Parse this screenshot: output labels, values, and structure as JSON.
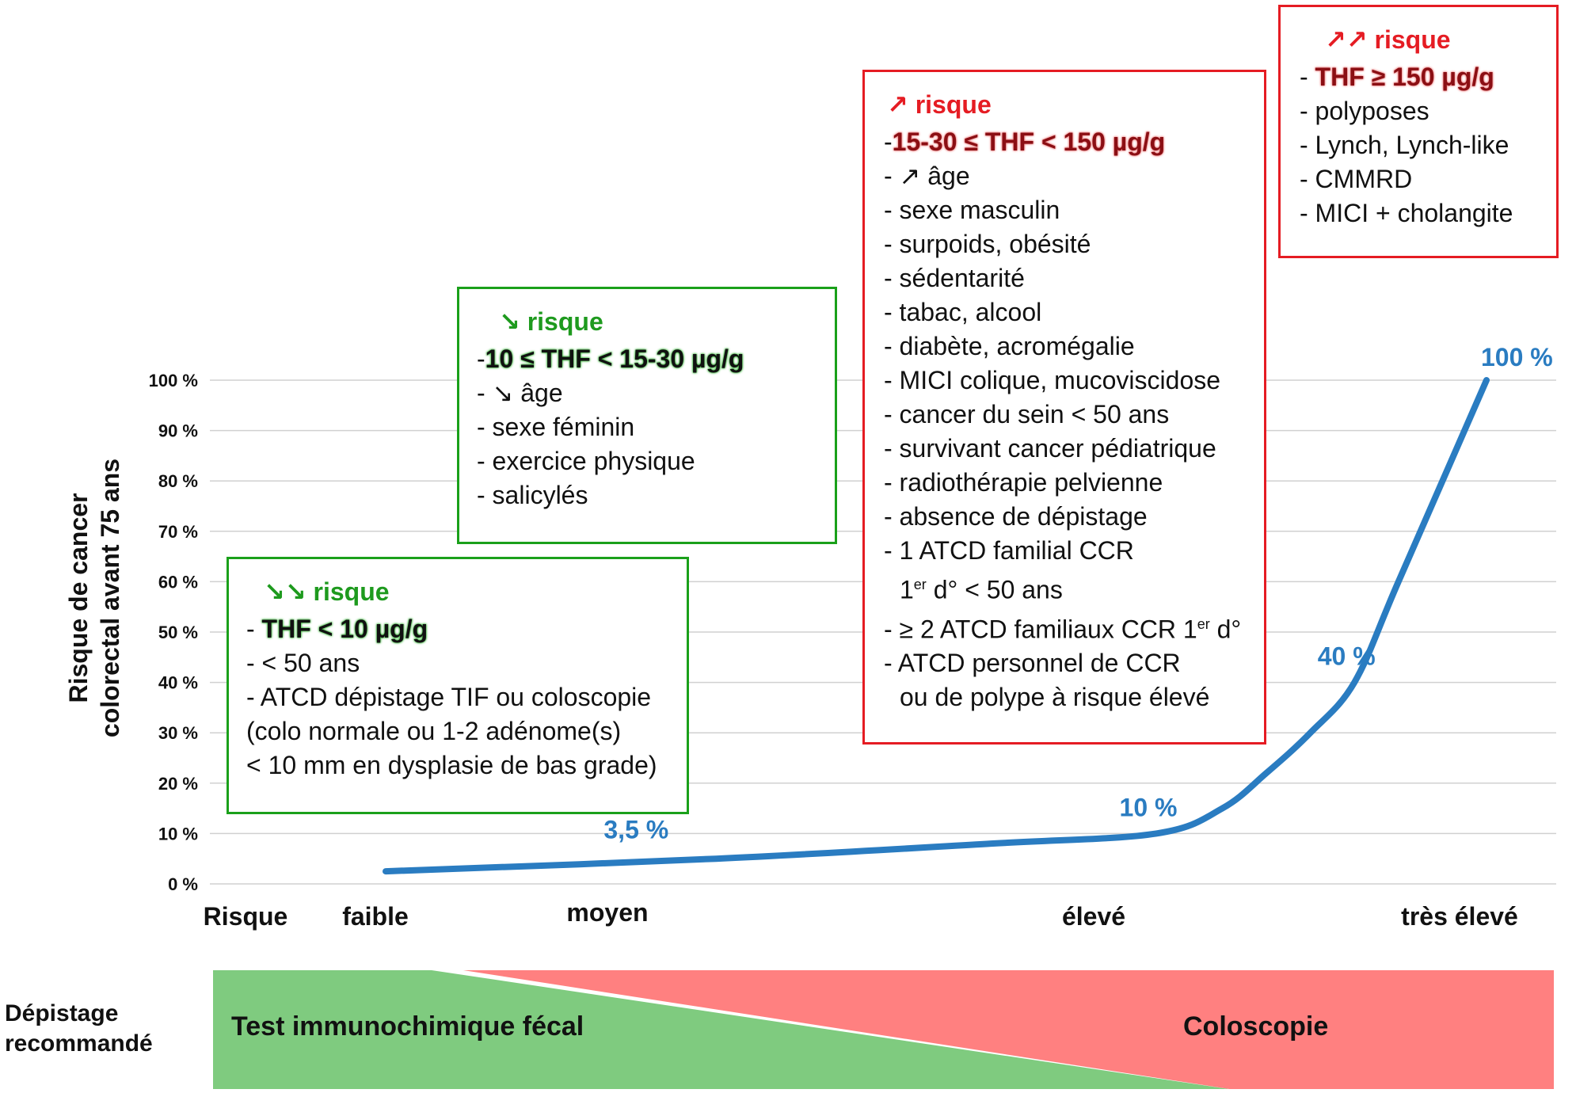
{
  "chart_data": {
    "type": "line",
    "ylabel_line1": "Risque de cancer",
    "ylabel_line2": "colorectal avant 75 ans",
    "yticks": [
      "0 %",
      "10 %",
      "20 %",
      "30 %",
      "40 %",
      "50 %",
      "60 %",
      "70 %",
      "80 %",
      "90 %",
      "100 %"
    ],
    "ylim": [
      0,
      100
    ],
    "x_categories": [
      "Risque",
      "faible",
      "moyen",
      "élevé",
      "très élevé"
    ],
    "series": [
      {
        "x": [
          0.0,
          0.3,
          0.55,
          0.7,
          0.76,
          0.8,
          0.84,
          0.88,
          0.92,
          1.0
        ],
        "y": [
          2.5,
          5,
          8,
          10,
          15,
          22,
          30,
          40,
          60,
          100
        ],
        "color": "#2a7cc1"
      }
    ],
    "point_labels": [
      {
        "text": "3,5 %",
        "x": 0.17,
        "y": 3.5
      },
      {
        "text": "10 %",
        "x": 0.7,
        "y": 10
      },
      {
        "text": "40 %",
        "x": 0.88,
        "y": 40
      },
      {
        "text": "100 %",
        "x": 1.0,
        "y": 100
      }
    ],
    "grid": true
  },
  "boxes": {
    "very_low": {
      "title": "↘↘ risque",
      "thf": "THF < 10 µg/g",
      "lines": [
        "- < 50 ans",
        "- ATCD dépistage TIF ou coloscopie",
        "(colo normale ou 1-2 adénome(s)",
        "< 10 mm en dysplasie de bas grade)"
      ]
    },
    "low": {
      "title": "↘ risque",
      "thf": "10 ≤ THF < 15-30 µg/g",
      "lines": [
        "- ↘ âge",
        "- sexe féminin",
        "- exercice physique",
        "- salicylés"
      ]
    },
    "high": {
      "title": "↗ risque",
      "thf": "15-30 ≤ THF < 150 µg/g",
      "lines": [
        "- ↗ âge",
        "- sexe masculin",
        "- surpoids, obésité",
        "- sédentarité",
        "- tabac, alcool",
        "- diabète, acromégalie",
        "- MICI colique, mucoviscidose",
        "- cancer du sein < 50 ans",
        "- survivant cancer pédiatrique",
        "- radiothérapie pelvienne",
        "- absence de dépistage",
        "- 1 ATCD familial CCR"
      ],
      "line_1st_a": "1",
      "line_1st_sup": "er",
      "line_1st_b": " d° < 50 ans",
      "line_2atcd_a": "- ≥ 2 ATCD familiaux CCR 1",
      "line_2atcd_sup": "er",
      "line_2atcd_b": " d°",
      "line_perso": "- ATCD personnel de CCR",
      "line_polype": "ou de polype à risque élevé"
    },
    "very_high": {
      "title": "↗↗ risque",
      "thf": "THF ≥ 150 µg/g",
      "lines": [
        "- polyposes",
        "- Lynch, Lynch-like",
        "- CMMRD",
        "- MICI + cholangite"
      ]
    }
  },
  "screening": {
    "label_line1": "Dépistage",
    "label_line2": "recommandé",
    "test_fecal": "Test immunochimique fécal",
    "coloscopie": "Coloscopie",
    "color_green": "#7fcb7f",
    "color_red": "#ff8080"
  }
}
